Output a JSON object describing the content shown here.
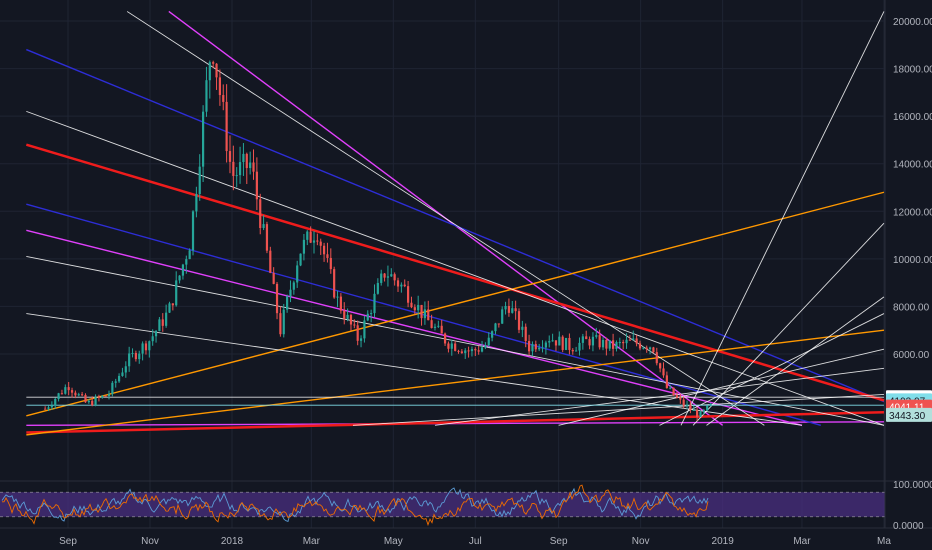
{
  "chart_data": {
    "type": "candlestick",
    "title": "",
    "xlabel": "",
    "ylabel": "",
    "x_tick_labels": [
      "Sep",
      "Nov",
      "2018",
      "Mar",
      "May",
      "Jul",
      "Sep",
      "Nov",
      "2019",
      "Mar",
      "Ma"
    ],
    "y_tick_labels": [
      "20000.00",
      "18000.00",
      "16000.00",
      "14000.00",
      "12000.00",
      "10000.00",
      "8000.00",
      "6000.00"
    ],
    "ylim": [
      3000,
      20400
    ],
    "price_tags": [
      {
        "label": "4183.05",
        "value": 4183,
        "color": "#ffffff",
        "text_color": "#131722"
      },
      {
        "label": "4193.07",
        "value": 4050,
        "color": "#80deea",
        "text_color": "#131722"
      },
      {
        "label": "4041.11",
        "value": 3790,
        "color": "#ef5350",
        "text_color": "#ffffff"
      },
      {
        "label": "3443.30",
        "value": 3443,
        "color": "#b2dfdb",
        "text_color": "#131722"
      }
    ],
    "series": [
      {
        "dates": [
          "2017-08-15",
          "2017-09-01",
          "2017-09-15",
          "2017-10-01",
          "2017-10-15",
          "2017-11-01",
          "2017-11-15",
          "2017-12-01",
          "2017-12-17",
          "2018-01-01",
          "2018-01-15",
          "2018-02-06",
          "2018-02-20",
          "2018-03-05",
          "2018-03-20",
          "2018-04-05",
          "2018-04-25",
          "2018-05-10",
          "2018-05-25",
          "2018-06-10",
          "2018-06-28",
          "2018-07-10",
          "2018-07-25",
          "2018-08-10",
          "2018-08-25",
          "2018-09-10",
          "2018-09-25",
          "2018-10-10",
          "2018-10-25",
          "2018-11-10",
          "2018-11-20",
          "2018-11-30",
          "2018-12-15",
          "2018-12-25"
        ],
        "close": [
          3700,
          4700,
          3900,
          4300,
          5700,
          6600,
          7800,
          10800,
          19300,
          13500,
          14000,
          7000,
          10300,
          11300,
          8300,
          6600,
          9500,
          8700,
          7500,
          6500,
          6100,
          6400,
          8200,
          6300,
          6700,
          6300,
          6600,
          6300,
          6500,
          6350,
          4600,
          4000,
          3400,
          3900
        ]
      }
    ],
    "lines": [
      {
        "color": "#e040fb",
        "points": [
          [
            "2017-11-15",
            20400
          ],
          [
            "2019-01-01",
            3000
          ]
        ]
      },
      {
        "color": "#e040fb",
        "points": [
          [
            "2017-08-01",
            11200
          ],
          [
            "2019-03-01",
            3000
          ]
        ]
      },
      {
        "color": "#e040fb",
        "points": [
          [
            "2017-08-01",
            3000
          ],
          [
            "2019-05-01",
            3150
          ]
        ]
      },
      {
        "color": "#2d2dd6",
        "points": [
          [
            "2017-08-01",
            18800
          ],
          [
            "2019-05-01",
            4000
          ]
        ]
      },
      {
        "color": "#2d2dd6",
        "points": [
          [
            "2017-08-01",
            12300
          ],
          [
            "2019-03-15",
            3000
          ]
        ]
      },
      {
        "color": "#ef1c1c",
        "points": [
          [
            "2017-08-01",
            14800
          ],
          [
            "2019-05-01",
            4050
          ]
        ]
      },
      {
        "color": "#ef1c1c",
        "points": [
          [
            "2017-08-01",
            2700
          ],
          [
            "2019-05-01",
            3550
          ]
        ]
      },
      {
        "color": "#ff9800",
        "points": [
          [
            "2017-08-01",
            3400
          ],
          [
            "2019-05-01",
            12800
          ]
        ]
      },
      {
        "color": "#ff9800",
        "points": [
          [
            "2017-08-01",
            2600
          ],
          [
            "2019-05-01",
            7000
          ]
        ]
      },
      {
        "color": "#ffffff",
        "points": [
          [
            "2017-08-01",
            16200
          ],
          [
            "2019-05-01",
            3000
          ]
        ]
      },
      {
        "color": "#ffffff",
        "points": [
          [
            "2017-08-01",
            10100
          ],
          [
            "2019-05-01",
            3000
          ]
        ]
      },
      {
        "color": "#ffffff",
        "points": [
          [
            "2017-08-01",
            7700
          ],
          [
            "2019-03-01",
            3000
          ]
        ]
      },
      {
        "color": "#ffffff",
        "points": [
          [
            "2017-10-15",
            20400
          ],
          [
            "2019-02-01",
            3000
          ]
        ]
      },
      {
        "color": "#ffffff",
        "points": [
          [
            "2018-12-01",
            3000
          ],
          [
            "2019-05-01",
            20400
          ]
        ]
      },
      {
        "color": "#ffffff",
        "points": [
          [
            "2018-12-10",
            3000
          ],
          [
            "2019-05-01",
            11500
          ]
        ]
      },
      {
        "color": "#ffffff",
        "points": [
          [
            "2018-12-20",
            3000
          ],
          [
            "2019-05-01",
            8400
          ]
        ]
      },
      {
        "color": "#ffffff",
        "points": [
          [
            "2018-09-01",
            3000
          ],
          [
            "2019-05-01",
            6200
          ]
        ]
      },
      {
        "color": "#ffffff",
        "points": [
          [
            "2018-06-01",
            3000
          ],
          [
            "2019-05-01",
            5400
          ]
        ]
      },
      {
        "color": "#ffffff",
        "points": [
          [
            "2018-11-15",
            3000
          ],
          [
            "2019-05-01",
            7700
          ]
        ]
      },
      {
        "color": "#ffffff",
        "points": [
          [
            "2018-04-01",
            3000
          ],
          [
            "2019-05-01",
            4300
          ]
        ]
      },
      {
        "color": "#ffffff",
        "points": [
          [
            "2017-08-01",
            4183
          ],
          [
            "2019-05-01",
            4183
          ]
        ]
      },
      {
        "color": "#80deea",
        "points": [
          [
            "2017-08-01",
            3850
          ],
          [
            "2019-05-01",
            3850
          ]
        ]
      }
    ],
    "oscillator": {
      "y_tick_labels": [
        "100.0000",
        "0.0000"
      ],
      "upper_band": 80,
      "lower_band": 20,
      "band_color": "#4a2f80",
      "line_colors": [
        "#5b9bd5",
        "#ef6c00"
      ]
    }
  }
}
